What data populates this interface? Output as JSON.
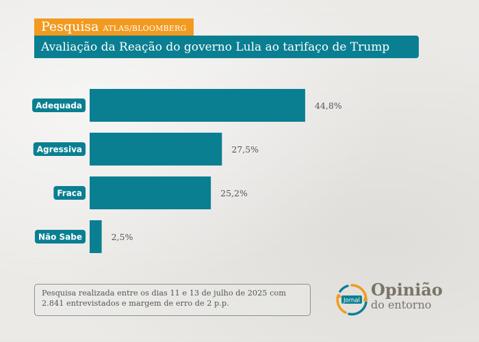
{
  "header": {
    "kicker": "Pesquisa",
    "source": "ATLAS/BLOOMBERG",
    "title": "Avaliação da Reação do governo Lula ao tarifaço de Trump"
  },
  "footnote": "Pesquisa realizada entre os dias 11 e 13 de julho de 2025 com 2.841 entrevistados e margem de erro de 2 p.p.",
  "logo": {
    "icon": "jornal-logo-icon",
    "badge": "Jornal",
    "line1": "Opinião",
    "line2": "do entorno"
  },
  "colors": {
    "bar": "#0a7f92",
    "accent": "#f29a1f",
    "label_text": "#555555"
  },
  "chart_data": {
    "type": "bar",
    "orientation": "horizontal",
    "categories": [
      "Adequada",
      "Agressiva",
      "Fraca",
      "Não Sabe"
    ],
    "values": [
      44.8,
      27.5,
      25.2,
      2.5
    ],
    "value_labels": [
      "44,8%",
      "27,5%",
      "25,2%",
      "2,5%"
    ],
    "unit": "%",
    "xlim": [
      0,
      100
    ],
    "grid": false,
    "legend": "none"
  }
}
